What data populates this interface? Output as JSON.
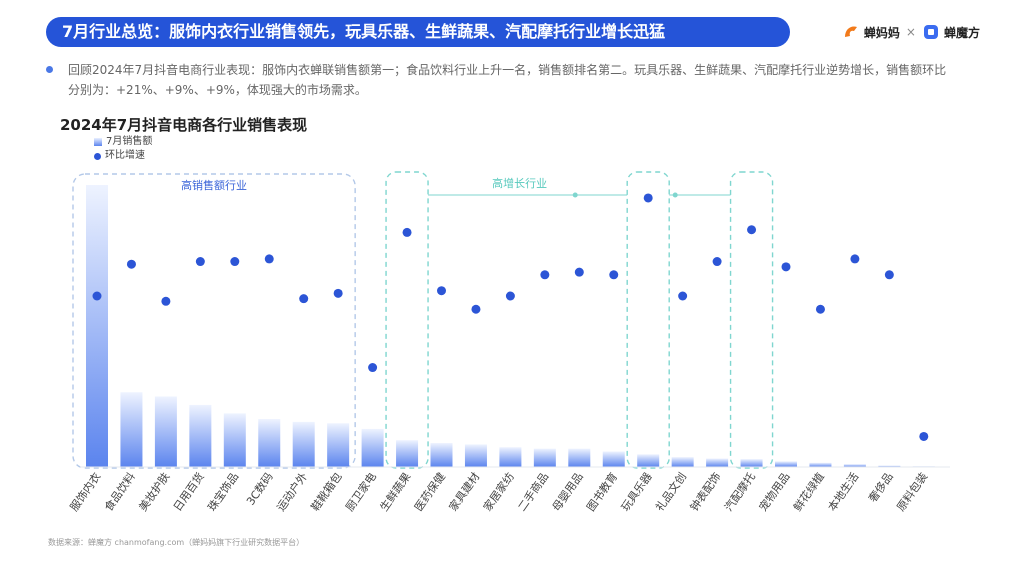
{
  "header": {
    "title": "7月行业总览：服饰内衣行业销售领先，玩具乐器、生鲜蔬果、汽配摩托行业增长迅猛",
    "brand_left": "蝉妈妈",
    "brand_sep": "×",
    "brand_right": "蝉魔方"
  },
  "summary": "回顾2024年7月抖音电商行业表现：服饰内衣蝉联销售额第一；食品饮料行业上升一名，销售额排名第二。玩具乐器、生鲜蔬果、汽配摩托行业逆势增长，销售额环比分别为：+21%、+9%、+9%，体现强大的市场需求。",
  "chart_title": "2024年7月抖音电商各行业销售表现",
  "source": "数据来源：蝉魔方 chanmofang.com（蝉妈妈旗下行业研究数据平台）",
  "chart_data": {
    "type": "bar+scatter",
    "categories": [
      "服饰内衣",
      "食品饮料",
      "美妆护肤",
      "日用百货",
      "珠宝饰品",
      "3C数码",
      "运动户外",
      "鞋靴箱包",
      "厨卫家电",
      "生鲜蔬果",
      "医药保健",
      "家具建材",
      "家居家纺",
      "二手商品",
      "母婴用品",
      "图书教育",
      "玩具乐器",
      "礼品文创",
      "钟表配饰",
      "汽配摩托",
      "宠物用品",
      "鲜花绿植",
      "本地生活",
      "奢侈品",
      "原料包装"
    ],
    "series": [
      {
        "name": "7月销售额",
        "kind": "bar",
        "values": [
          100,
          26.5,
          25,
          22,
          19,
          17,
          16,
          15.5,
          13.5,
          9.5,
          8.5,
          8,
          7,
          6.5,
          6.5,
          5.5,
          4.5,
          3.5,
          3,
          2.8,
          2,
          1.5,
          1,
          0.5,
          0.3
        ]
      },
      {
        "name": "环比增速",
        "kind": "dot",
        "values": [
          0.6,
          0.72,
          0.58,
          0.73,
          0.73,
          0.74,
          0.59,
          0.61,
          0.33,
          0.84,
          0.62,
          0.55,
          0.6,
          0.68,
          0.69,
          0.68,
          0.97,
          0.6,
          0.73,
          0.85,
          0.71,
          0.55,
          0.74,
          0.68,
          0.07
        ]
      }
    ],
    "annotations": [
      {
        "label": "高销售额行业",
        "from": 0,
        "to": 7
      },
      {
        "label": "高增长行业",
        "groups": [
          9,
          16,
          19
        ]
      }
    ],
    "colors": {
      "bar_top": "#5b84ee",
      "bar_bottom": "#eef3ff",
      "dot": "#2c55d6",
      "box_high_sales": "#b3c8e8",
      "box_high_growth": "#7fd6cf",
      "label_high_sales": "#3a64d8",
      "label_high_growth": "#56c9bd"
    }
  }
}
